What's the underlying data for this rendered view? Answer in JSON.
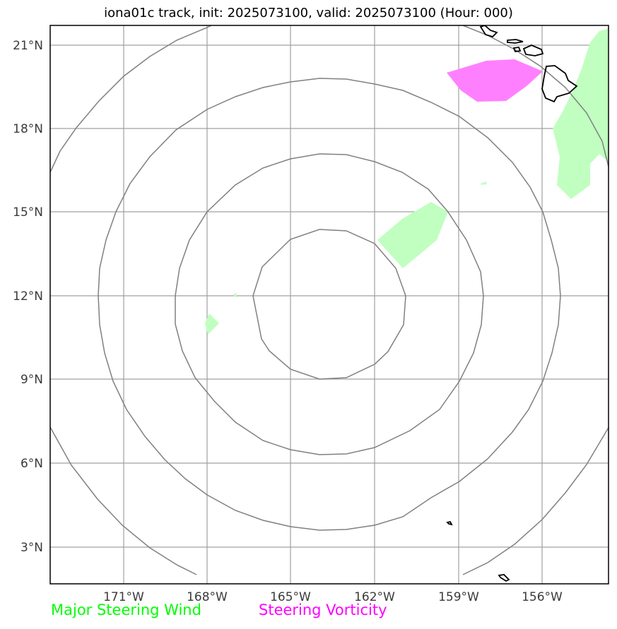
{
  "title": "iona01c track, init: 2025073100, valid: 2025073100 (Hour: 000)",
  "map": {
    "lon_ticks": [
      "171°W",
      "168°W",
      "165°W",
      "162°W",
      "159°W",
      "156°W"
    ],
    "lat_ticks": [
      "21°N",
      "18°N",
      "15°N",
      "12°N",
      "9°N",
      "6°N",
      "3°N"
    ],
    "colors": {
      "steering_wind_fill": "#c0ffc0",
      "steering_vorticity_fill": "#ff80ff",
      "range_rings": "#808080",
      "gridlines": "#a0a0a0",
      "coastline": "#000000"
    }
  },
  "legend": {
    "wind": {
      "label": "Major Steering Wind",
      "color": "#00ff00"
    },
    "vorticity": {
      "label": "Steering Vorticity",
      "color": "#ff00ff"
    }
  }
}
